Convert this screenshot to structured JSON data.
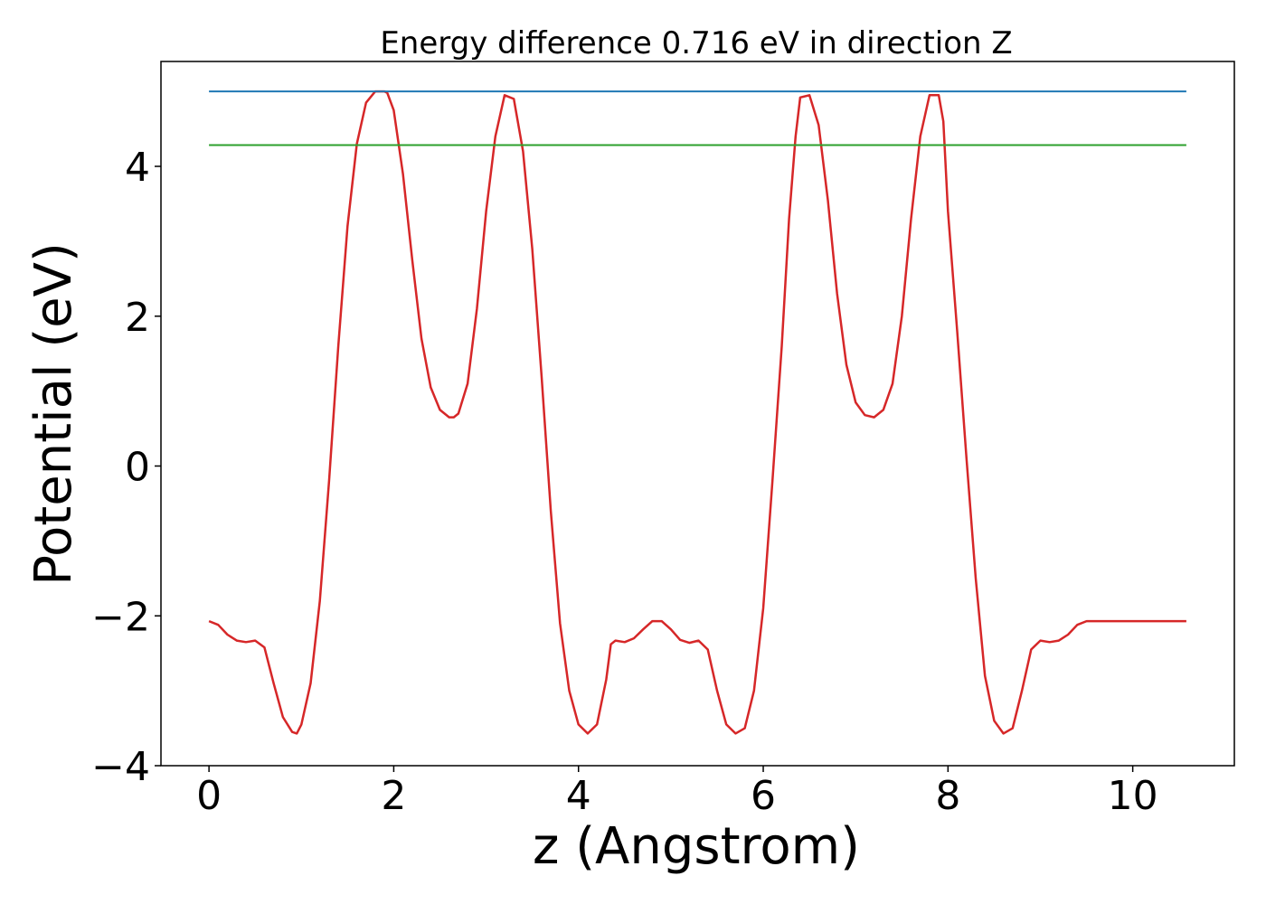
{
  "chart_data": {
    "type": "line",
    "title": "Energy difference 0.716 eV in direction Z",
    "xlabel": "z (Angstrom)",
    "ylabel": "Potential (eV)",
    "xlim": [
      -0.52,
      11.1
    ],
    "ylim": [
      -4.0,
      5.4
    ],
    "x_ticks": [
      0,
      2,
      4,
      6,
      8,
      10
    ],
    "y_ticks": [
      -4,
      -2,
      0,
      2,
      4
    ],
    "x_tick_labels": [
      "0",
      "2",
      "4",
      "6",
      "8",
      "10"
    ],
    "y_tick_labels": [
      "−4",
      "−2",
      "0",
      "2",
      "4"
    ],
    "grid": false,
    "series": [
      {
        "color": "#d62728",
        "x": [
          0.0,
          0.1,
          0.2,
          0.3,
          0.4,
          0.5,
          0.6,
          0.7,
          0.8,
          0.9,
          0.95,
          1.0,
          1.1,
          1.2,
          1.3,
          1.4,
          1.5,
          1.6,
          1.7,
          1.8,
          1.9,
          1.93,
          2.0,
          2.1,
          2.2,
          2.3,
          2.4,
          2.5,
          2.6,
          2.65,
          2.7,
          2.8,
          2.9,
          3.0,
          3.1,
          3.2,
          3.3,
          3.4,
          3.5,
          3.6,
          3.7,
          3.8,
          3.9,
          4.0,
          4.1,
          4.2,
          4.3,
          4.35,
          4.4,
          4.5,
          4.6,
          4.7,
          4.8,
          4.9,
          5.0,
          5.1,
          5.2,
          5.3,
          5.4,
          5.5,
          5.6,
          5.7,
          5.8,
          5.9,
          6.0,
          6.1,
          6.2,
          6.28,
          6.35,
          6.4,
          6.5,
          6.6,
          6.7,
          6.8,
          6.9,
          7.0,
          7.1,
          7.2,
          7.3,
          7.4,
          7.5,
          7.6,
          7.7,
          7.8,
          7.9,
          7.95,
          8.0,
          8.1,
          8.2,
          8.3,
          8.4,
          8.5,
          8.6,
          8.7,
          8.8,
          8.9,
          9.0,
          9.1,
          9.2,
          9.3,
          9.4,
          9.5,
          9.6,
          9.68,
          9.75,
          9.8,
          9.9,
          10.0,
          10.1,
          10.2,
          10.3,
          10.4,
          10.5,
          10.58
        ],
        "y": [
          -2.07,
          -2.12,
          -2.25,
          -2.33,
          -2.35,
          -2.33,
          -2.42,
          -2.9,
          -3.35,
          -3.55,
          -3.57,
          -3.45,
          -2.9,
          -1.8,
          -0.2,
          1.6,
          3.2,
          4.3,
          4.85,
          5.0,
          5.0,
          4.98,
          4.75,
          3.9,
          2.75,
          1.7,
          1.05,
          0.75,
          0.65,
          0.65,
          0.7,
          1.1,
          2.1,
          3.4,
          4.4,
          4.95,
          4.9,
          4.2,
          2.9,
          1.2,
          -0.6,
          -2.1,
          -3.0,
          -3.45,
          -3.57,
          -3.45,
          -2.85,
          -2.38,
          -2.33,
          -2.35,
          -2.3,
          -2.18,
          -2.07,
          -2.07,
          -2.18,
          -2.32,
          -2.36,
          -2.33,
          -2.45,
          -3.0,
          -3.45,
          -3.57,
          -3.5,
          -3.0,
          -1.9,
          -0.2,
          1.6,
          3.3,
          4.4,
          4.92,
          4.95,
          4.55,
          3.55,
          2.3,
          1.35,
          0.85,
          0.68,
          0.65,
          0.75,
          1.1,
          2.0,
          3.3,
          4.4,
          4.95,
          4.95,
          4.6,
          3.4,
          1.8,
          0.1,
          -1.5,
          -2.8,
          -3.4,
          -3.57,
          -3.5,
          -3.0,
          -2.45,
          -2.33,
          -2.35,
          -2.33,
          -2.25,
          -2.12,
          -2.07,
          -2.07,
          -2.07,
          -2.07,
          -2.07,
          -2.07,
          -2.07,
          -2.07,
          -2.07,
          -2.07,
          -2.07,
          -2.07,
          -2.07
        ]
      },
      {
        "color": "#1f77b4",
        "x": [
          0.0,
          10.58
        ],
        "y": [
          5.0,
          5.0
        ]
      },
      {
        "color": "#2ca02c",
        "x": [
          0.0,
          10.58
        ],
        "y": [
          4.284,
          4.284
        ]
      }
    ]
  }
}
